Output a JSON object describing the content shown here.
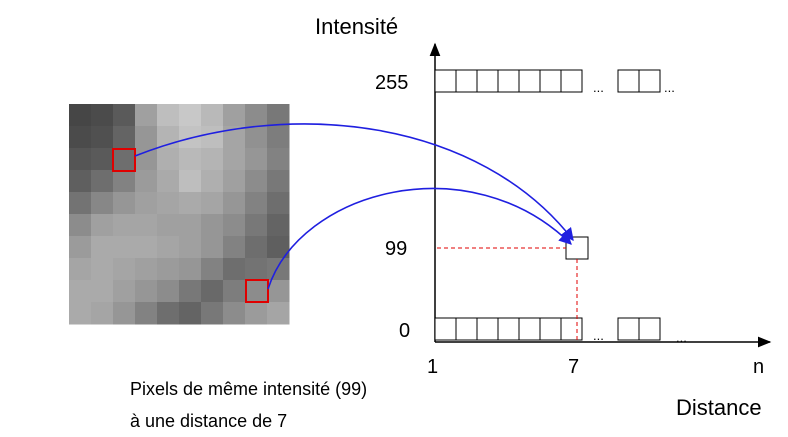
{
  "axis": {
    "y_label": "Intensité",
    "x_label": "Distance",
    "y_ticks": [
      "255",
      "99",
      "0"
    ],
    "x_ticks": [
      "1",
      "7",
      "n"
    ],
    "ellipsis": "..."
  },
  "caption": {
    "line1": "Pixels de même intensité (99)",
    "line2": "à une distance de 7"
  },
  "image_grid": {
    "rows": 10,
    "cols": 10,
    "gray_levels": [
      [
        70,
        75,
        90,
        160,
        190,
        200,
        185,
        160,
        140,
        120
      ],
      [
        75,
        80,
        100,
        150,
        180,
        195,
        190,
        165,
        145,
        125
      ],
      [
        85,
        90,
        110,
        150,
        175,
        185,
        180,
        165,
        150,
        130
      ],
      [
        95,
        110,
        130,
        155,
        170,
        190,
        175,
        160,
        140,
        120
      ],
      [
        115,
        135,
        150,
        160,
        165,
        170,
        165,
        150,
        130,
        110
      ],
      [
        140,
        160,
        165,
        165,
        160,
        160,
        150,
        140,
        120,
        100
      ],
      [
        155,
        170,
        170,
        170,
        165,
        160,
        150,
        130,
        110,
        95
      ],
      [
        165,
        170,
        165,
        160,
        155,
        150,
        130,
        110,
        115,
        120
      ],
      [
        170,
        170,
        160,
        150,
        140,
        120,
        105,
        125,
        140,
        150
      ],
      [
        170,
        165,
        150,
        130,
        110,
        100,
        120,
        140,
        155,
        165
      ]
    ]
  },
  "highlight_pixels": [
    {
      "row": 2,
      "col": 2
    },
    {
      "row": 7,
      "col": 7
    }
  ],
  "colors": {
    "highlight": "#e00000",
    "arrow": "#1f1fe0",
    "guide": "#e00000",
    "axis": "#000000",
    "cell": "#000000"
  }
}
